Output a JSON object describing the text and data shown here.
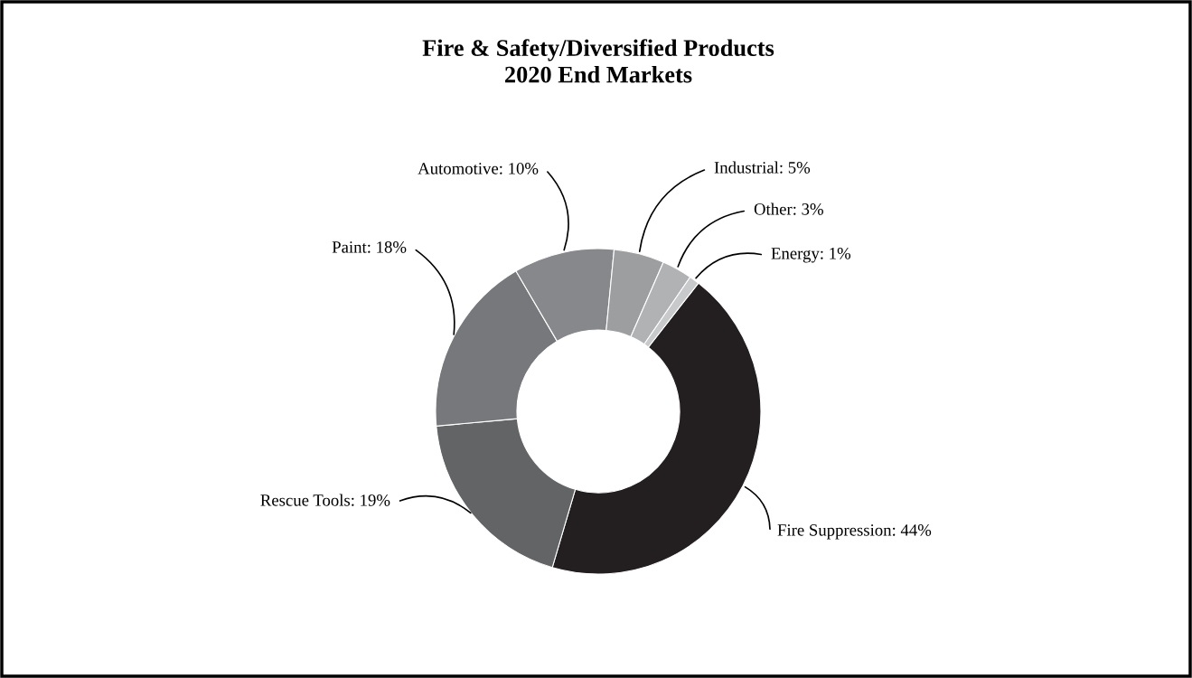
{
  "chart_data": {
    "type": "donut",
    "title": "Fire & Safety/Diversified Products\n2020 End Markets",
    "categories": [
      "Fire Suppression: 44%",
      "Rescue Tools: 19%",
      "Paint: 18%",
      "Automotive: 10%",
      "Industrial: 5%",
      "Other: 3%",
      "Energy: 1%"
    ],
    "values": [
      44,
      19,
      18,
      10,
      5,
      3,
      1
    ],
    "colors": [
      "#231f20",
      "#636466",
      "#77787b",
      "#87888b",
      "#9d9ea0",
      "#b1b2b4",
      "#c8c9cb"
    ],
    "legend": false
  }
}
